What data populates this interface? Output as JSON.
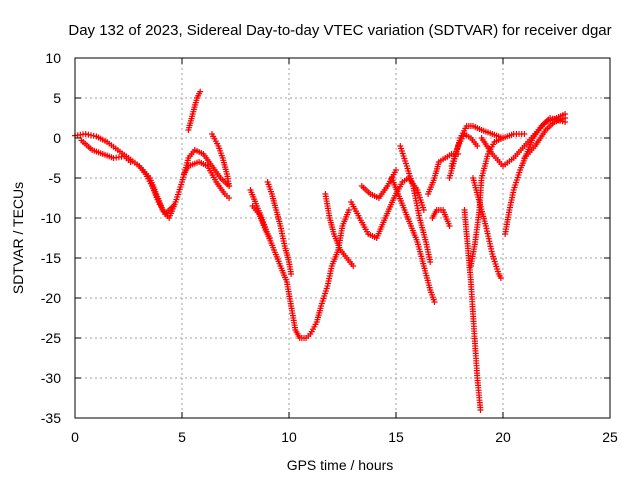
{
  "chart_data": {
    "type": "scatter",
    "title": "Day 132 of 2023, Sidereal Day-to-day VTEC variation (SDTVAR) for receiver dgar",
    "xlabel": "GPS time / hours",
    "ylabel": "SDTVAR / TECUs",
    "xlim": [
      0,
      25
    ],
    "ylim": [
      -35,
      10
    ],
    "xticks": [
      0,
      5,
      10,
      15,
      20,
      25
    ],
    "yticks": [
      10,
      5,
      0,
      -5,
      -10,
      -15,
      -20,
      -25,
      -30,
      -35
    ],
    "grid": true,
    "marker": "+",
    "color": "#ff0000",
    "series": [
      {
        "points": [
          [
            0.0,
            0.3
          ],
          [
            0.5,
            0.5
          ],
          [
            1.0,
            0.2
          ],
          [
            1.5,
            -0.5
          ],
          [
            2.0,
            -1.5
          ],
          [
            2.5,
            -2.5
          ],
          [
            3.0,
            -3.5
          ],
          [
            3.5,
            -5.0
          ],
          [
            3.8,
            -7.0
          ],
          [
            4.1,
            -9.0
          ],
          [
            4.4,
            -10.0
          ],
          [
            4.7,
            -8.0
          ],
          [
            5.0,
            -5.5
          ],
          [
            5.3,
            -2.5
          ],
          [
            5.6,
            -1.5
          ],
          [
            6.0,
            -2.0
          ],
          [
            6.4,
            -3.5
          ],
          [
            6.8,
            -5.0
          ],
          [
            7.2,
            -6.0
          ]
        ]
      },
      {
        "points": [
          [
            0.3,
            -0.3
          ],
          [
            0.8,
            -1.5
          ],
          [
            1.3,
            -2.0
          ],
          [
            1.8,
            -2.5
          ],
          [
            2.3,
            -2.3
          ],
          [
            2.6,
            -3.0
          ]
        ]
      },
      {
        "points": [
          [
            3.0,
            -3.5
          ],
          [
            3.3,
            -4.5
          ],
          [
            3.6,
            -6.0
          ],
          [
            3.9,
            -8.0
          ],
          [
            4.2,
            -9.5
          ],
          [
            4.6,
            -8.5
          ]
        ]
      },
      {
        "points": [
          [
            5.3,
            1.0
          ],
          [
            5.5,
            3.0
          ],
          [
            5.7,
            5.0
          ],
          [
            5.85,
            5.8
          ]
        ]
      },
      {
        "points": [
          [
            5.1,
            -4.5
          ],
          [
            5.3,
            -3.5
          ],
          [
            5.8,
            -3.0
          ],
          [
            6.2,
            -3.5
          ],
          [
            6.6,
            -5.5
          ],
          [
            7.0,
            -7.0
          ],
          [
            7.2,
            -7.5
          ]
        ]
      },
      {
        "points": [
          [
            6.4,
            0.5
          ],
          [
            6.7,
            -1.0
          ],
          [
            6.9,
            -2.5
          ],
          [
            7.1,
            -4.5
          ],
          [
            7.2,
            -6.0
          ]
        ]
      },
      {
        "points": [
          [
            8.2,
            -6.5
          ],
          [
            8.5,
            -8.5
          ],
          [
            8.8,
            -10.5
          ],
          [
            9.0,
            -12.0
          ],
          [
            9.3,
            -14.0
          ],
          [
            9.6,
            -16.0
          ],
          [
            9.9,
            -18.0
          ],
          [
            10.1,
            -21.0
          ],
          [
            10.3,
            -24.0
          ],
          [
            10.5,
            -25.0
          ],
          [
            10.8,
            -25.0
          ],
          [
            11.0,
            -24.5
          ],
          [
            11.3,
            -23.0
          ],
          [
            11.5,
            -21.0
          ],
          [
            11.8,
            -18.5
          ],
          [
            12.0,
            -16.0
          ],
          [
            12.3,
            -14.0
          ],
          [
            12.5,
            -11.0
          ],
          [
            12.8,
            -9.0
          ]
        ]
      },
      {
        "points": [
          [
            9.0,
            -5.5
          ],
          [
            9.2,
            -7.0
          ],
          [
            9.4,
            -9.0
          ],
          [
            9.6,
            -11.0
          ],
          [
            9.8,
            -13.5
          ],
          [
            10.0,
            -15.5
          ],
          [
            10.1,
            -17.0
          ]
        ]
      },
      {
        "points": [
          [
            8.3,
            -8.5
          ],
          [
            8.6,
            -9.5
          ],
          [
            8.9,
            -11.5
          ],
          [
            9.1,
            -12.5
          ]
        ]
      },
      {
        "points": [
          [
            11.7,
            -7.0
          ],
          [
            11.9,
            -10.0
          ],
          [
            12.1,
            -12.0
          ],
          [
            12.4,
            -14.0
          ],
          [
            12.7,
            -15.0
          ],
          [
            13.0,
            -16.0
          ]
        ]
      },
      {
        "points": [
          [
            12.9,
            -8.0
          ],
          [
            13.3,
            -10.0
          ],
          [
            13.7,
            -12.0
          ],
          [
            14.1,
            -12.5
          ],
          [
            14.5,
            -10.0
          ],
          [
            14.9,
            -7.5
          ],
          [
            15.3,
            -5.5
          ],
          [
            15.6,
            -5.0
          ],
          [
            16.0,
            -6.5
          ],
          [
            16.3,
            -9.0
          ]
        ]
      },
      {
        "points": [
          [
            13.4,
            -6.0
          ],
          [
            13.8,
            -7.0
          ],
          [
            14.2,
            -7.5
          ],
          [
            14.6,
            -6.0
          ],
          [
            15.0,
            -4.0
          ]
        ]
      },
      {
        "points": [
          [
            14.8,
            -5.0
          ],
          [
            15.1,
            -7.0
          ],
          [
            15.4,
            -9.0
          ],
          [
            15.7,
            -11.0
          ],
          [
            16.0,
            -13.0
          ],
          [
            16.3,
            -16.0
          ],
          [
            16.6,
            -19.0
          ],
          [
            16.8,
            -20.5
          ]
        ]
      },
      {
        "points": [
          [
            15.2,
            -1.0
          ],
          [
            15.5,
            -3.5
          ],
          [
            15.8,
            -6.0
          ],
          [
            16.1,
            -10.0
          ],
          [
            16.4,
            -13.0
          ],
          [
            16.6,
            -15.5
          ]
        ]
      },
      {
        "points": [
          [
            16.5,
            -7.0
          ],
          [
            16.8,
            -5.0
          ],
          [
            17.0,
            -3.0
          ],
          [
            17.3,
            -2.5
          ],
          [
            17.6,
            -2.0
          ],
          [
            17.9,
            -2.0
          ]
        ]
      },
      {
        "points": [
          [
            16.7,
            -10.0
          ],
          [
            16.9,
            -9.0
          ],
          [
            17.2,
            -9.0
          ],
          [
            17.5,
            -11.0
          ]
        ]
      },
      {
        "points": [
          [
            17.5,
            -5.0
          ],
          [
            17.8,
            -2.0
          ],
          [
            18.0,
            0.0
          ],
          [
            18.3,
            1.5
          ],
          [
            18.6,
            1.5
          ],
          [
            19.0,
            1.0
          ],
          [
            19.5,
            0.5
          ],
          [
            20.0,
            0.0
          ],
          [
            20.5,
            0.5
          ],
          [
            21.0,
            0.5
          ]
        ]
      },
      {
        "points": [
          [
            17.6,
            -3.5
          ],
          [
            17.9,
            -1.0
          ],
          [
            18.2,
            0.5
          ],
          [
            18.5,
            0.0
          ],
          [
            18.8,
            -1.0
          ]
        ]
      },
      {
        "points": [
          [
            18.2,
            -9.0
          ],
          [
            18.3,
            -12.0
          ],
          [
            18.4,
            -15.0
          ],
          [
            18.5,
            -18.0
          ],
          [
            18.6,
            -22.0
          ],
          [
            18.7,
            -26.0
          ],
          [
            18.8,
            -30.0
          ],
          [
            18.95,
            -34.0
          ]
        ]
      },
      {
        "points": [
          [
            18.5,
            -16.0
          ],
          [
            18.7,
            -13.0
          ],
          [
            18.9,
            -9.0
          ],
          [
            19.0,
            -5.0
          ],
          [
            19.3,
            -2.0
          ],
          [
            19.6,
            -0.5
          ],
          [
            20.0,
            0.0
          ]
        ]
      },
      {
        "points": [
          [
            18.6,
            -5.0
          ],
          [
            18.9,
            -8.0
          ],
          [
            19.2,
            -11.0
          ],
          [
            19.5,
            -14.5
          ],
          [
            19.8,
            -17.0
          ],
          [
            19.9,
            -17.5
          ]
        ]
      },
      {
        "points": [
          [
            19.0,
            0.0
          ],
          [
            19.5,
            -2.0
          ],
          [
            20.0,
            -3.5
          ],
          [
            20.5,
            -2.5
          ],
          [
            21.0,
            -1.0
          ],
          [
            21.5,
            0.5
          ],
          [
            22.0,
            2.0
          ],
          [
            22.5,
            2.5
          ],
          [
            22.9,
            3.0
          ]
        ]
      },
      {
        "points": [
          [
            20.1,
            -12.0
          ],
          [
            20.3,
            -9.0
          ],
          [
            20.5,
            -6.5
          ],
          [
            20.8,
            -4.0
          ],
          [
            21.1,
            -2.0
          ],
          [
            21.4,
            0.0
          ],
          [
            21.8,
            1.5
          ],
          [
            22.2,
            2.5
          ],
          [
            22.9,
            2.0
          ]
        ]
      },
      {
        "points": [
          [
            21.0,
            -2.5
          ],
          [
            21.5,
            -1.0
          ],
          [
            22.0,
            1.0
          ],
          [
            22.4,
            2.0
          ],
          [
            22.9,
            2.5
          ]
        ]
      }
    ]
  }
}
